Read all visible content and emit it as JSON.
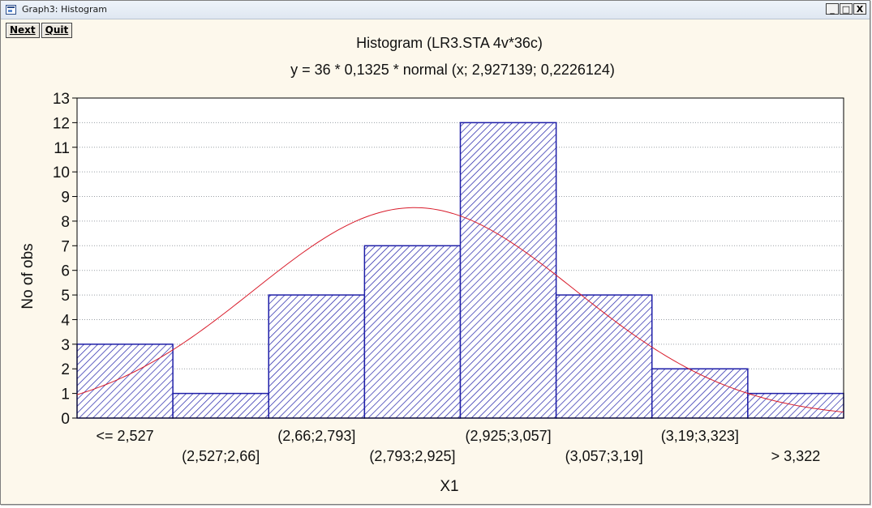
{
  "window": {
    "title": "Graph3: Histogram",
    "controls": {
      "minimize": "_",
      "maximize": "□",
      "close": "X"
    }
  },
  "toolbar": {
    "next_label": "Next",
    "quit_label": "Quit"
  },
  "colors": {
    "bar_stroke": "#1f1fa8",
    "bar_hatch": "#1f1fa8",
    "curve": "#d81b2a",
    "grid": "#9aa0a6",
    "background": "#fdf8ec"
  },
  "chart_data": {
    "type": "bar",
    "title": "Histogram (LR3.STA 4v*36c)",
    "subtitle": "y = 36 * 0,1325 * normal (x; 2,927139; 0,2226124)",
    "xlabel": "X1",
    "ylabel": "No of obs",
    "ylim": [
      0,
      13
    ],
    "yticks": [
      0,
      1,
      2,
      3,
      4,
      5,
      6,
      7,
      8,
      9,
      10,
      11,
      12,
      13
    ],
    "grid": "horizontal dotted",
    "categories": [
      "<= 2,527",
      "(2,527;2,66]",
      "(2,66;2,793]",
      "(2,793;2,925]",
      "(2,925;3,057]",
      "(3,057;3,19]",
      "(3,19;3,323]",
      "> 3,322"
    ],
    "values": [
      3,
      1,
      5,
      7,
      12,
      5,
      2,
      1
    ],
    "fit_curve": {
      "type": "normal",
      "n": 36,
      "bin_width": 0.1325,
      "mean": 2.927139,
      "sd": 0.2226124,
      "x_start": 2.4605,
      "bin_width_x": 0.1325
    }
  }
}
